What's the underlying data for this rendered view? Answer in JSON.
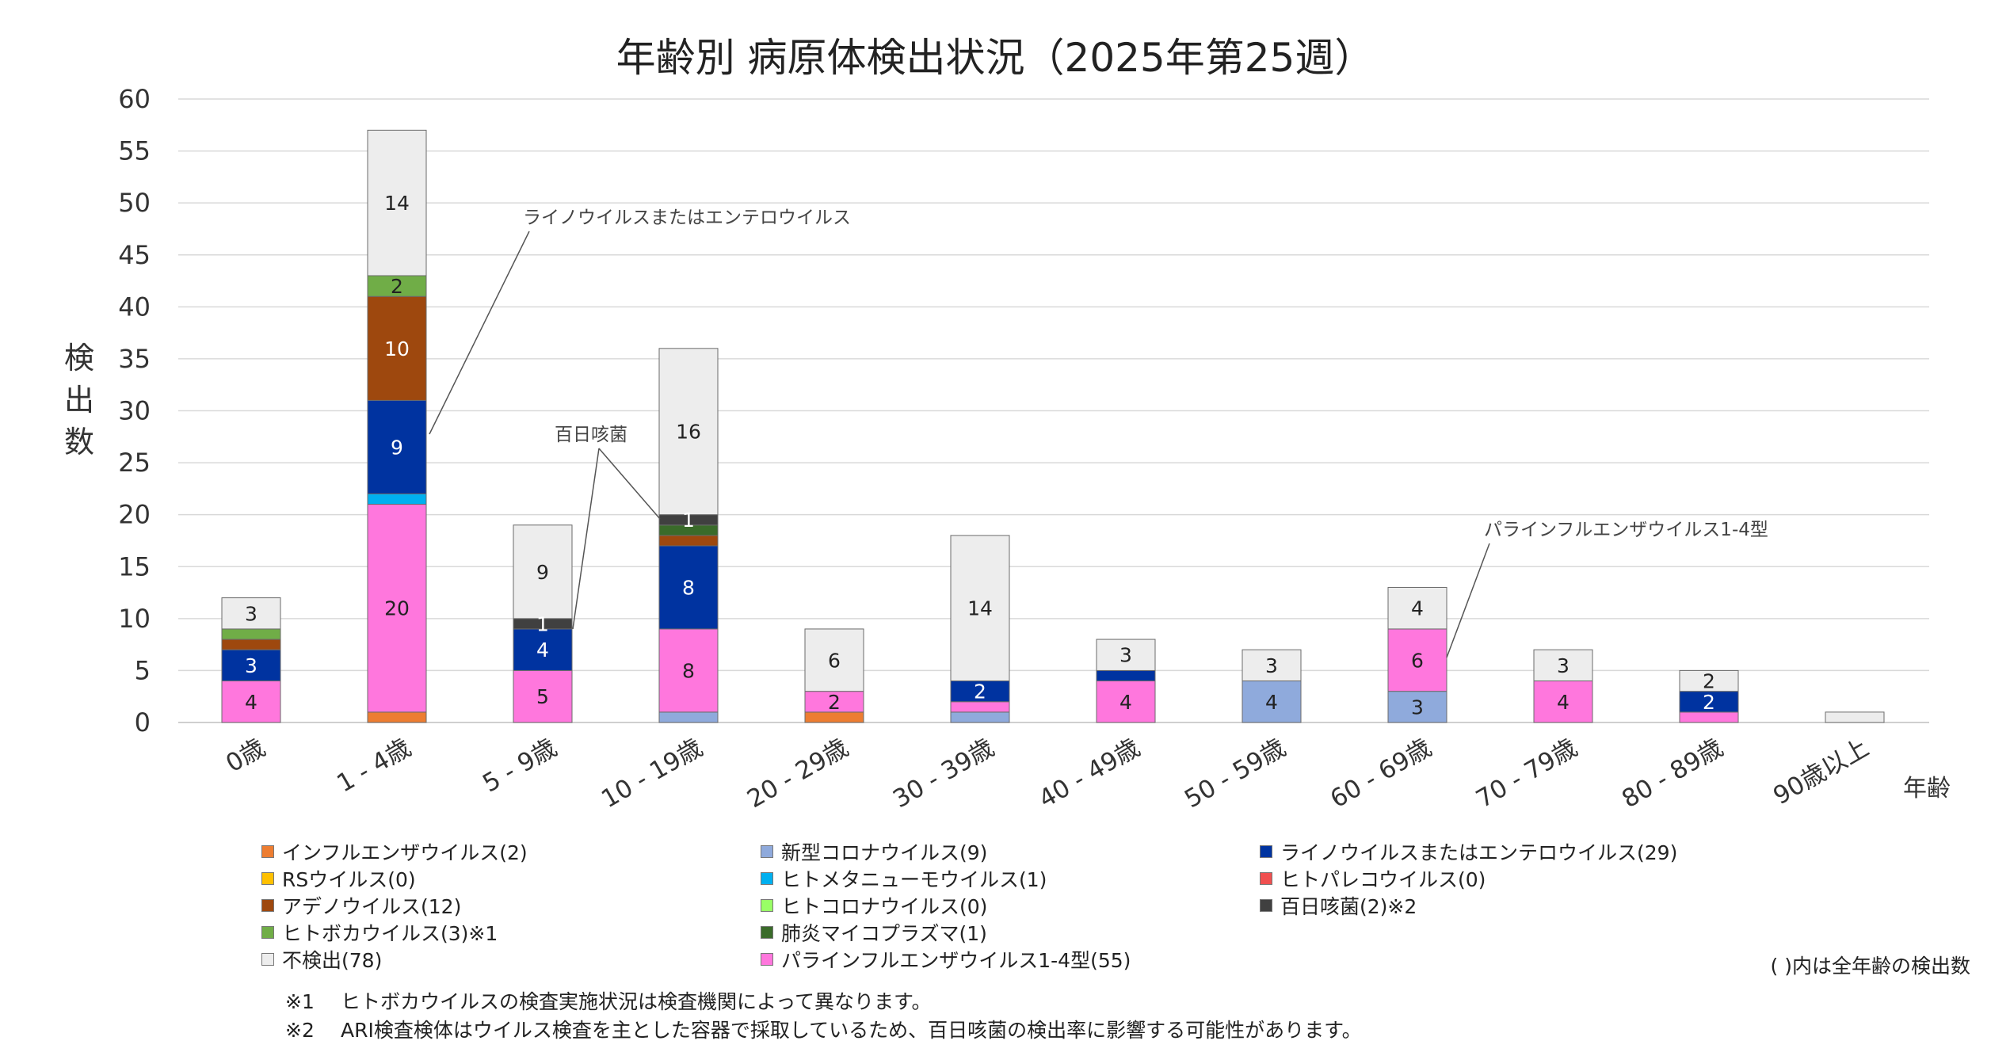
{
  "chart_data": {
    "type": "bar",
    "stacked": true,
    "title": "年齢別 病原体検出状況（2025年第25週）",
    "ylabel": "検出数",
    "xlabel": "年齢",
    "ylim": [
      0,
      60
    ],
    "yticks": [
      0,
      5,
      10,
      15,
      20,
      25,
      30,
      35,
      40,
      45,
      50,
      55,
      60
    ],
    "grid": true,
    "legend_position": "bottom",
    "categories": [
      "0歳",
      "1 - 4歳",
      "5 - 9歳",
      "10 - 19歳",
      "20 - 29歳",
      "30 - 39歳",
      "40 - 49歳",
      "50 - 59歳",
      "60 - 69歳",
      "70 - 79歳",
      "80 - 89歳",
      "90歳以上"
    ],
    "series": [
      {
        "name": "インフルエンザウイルス(2)",
        "color": "#ED7D31",
        "values": [
          0,
          1,
          0,
          0,
          1,
          0,
          0,
          0,
          0,
          0,
          0,
          0
        ]
      },
      {
        "name": "新型コロナウイルス(9)",
        "color": "#8FAADC",
        "values": [
          0,
          0,
          0,
          1,
          0,
          1,
          0,
          4,
          3,
          0,
          0,
          0
        ]
      },
      {
        "name": "パラインフルエンザウイルス1-4型(55)",
        "color": "#FF77DD",
        "values": [
          4,
          20,
          5,
          8,
          2,
          1,
          4,
          0,
          6,
          4,
          1,
          0
        ]
      },
      {
        "name": "RSウイルス(0)",
        "color": "#FFC000",
        "values": [
          0,
          0,
          0,
          0,
          0,
          0,
          0,
          0,
          0,
          0,
          0,
          0
        ]
      },
      {
        "name": "ヒトメタニューモウイルス(1)",
        "color": "#00B0F0",
        "values": [
          0,
          1,
          0,
          0,
          0,
          0,
          0,
          0,
          0,
          0,
          0,
          0
        ]
      },
      {
        "name": "ライノウイルスまたはエンテロウイルス(29)",
        "color": "#0033A0",
        "values": [
          3,
          9,
          4,
          8,
          0,
          2,
          1,
          0,
          0,
          0,
          2,
          0
        ]
      },
      {
        "name": "アデノウイルス(12)",
        "color": "#9E480E",
        "values": [
          1,
          10,
          0,
          1,
          0,
          0,
          0,
          0,
          0,
          0,
          0,
          0
        ]
      },
      {
        "name": "ヒトコロナウイルス(0)",
        "color": "#99FF66",
        "values": [
          0,
          0,
          0,
          0,
          0,
          0,
          0,
          0,
          0,
          0,
          0,
          0
        ]
      },
      {
        "name": "ヒトパレコウイルス(0)",
        "color": "#F05050",
        "values": [
          0,
          0,
          0,
          0,
          0,
          0,
          0,
          0,
          0,
          0,
          0,
          0
        ]
      },
      {
        "name": "ヒトボカウイルス(3)※1",
        "color": "#70AD47",
        "values": [
          1,
          2,
          0,
          0,
          0,
          0,
          0,
          0,
          0,
          0,
          0,
          0
        ]
      },
      {
        "name": "肺炎マイコプラズマ(1)",
        "color": "#3A6B2A",
        "values": [
          0,
          0,
          0,
          1,
          0,
          0,
          0,
          0,
          0,
          0,
          0,
          0
        ]
      },
      {
        "name": "百日咳菌(2)※2",
        "color": "#404040",
        "values": [
          0,
          0,
          1,
          1,
          0,
          0,
          0,
          0,
          0,
          0,
          0,
          0
        ]
      },
      {
        "name": "不検出(78)",
        "color": "#EDEDED",
        "values": [
          3,
          14,
          9,
          16,
          6,
          14,
          3,
          3,
          4,
          3,
          2,
          1
        ]
      }
    ],
    "data_labels": [
      {
        "category": 0,
        "series": 2,
        "text": "4"
      },
      {
        "category": 0,
        "series": 5,
        "text": "3"
      },
      {
        "category": 0,
        "series": 12,
        "text": "3"
      },
      {
        "category": 1,
        "series": 2,
        "text": "20"
      },
      {
        "category": 1,
        "series": 5,
        "text": "9"
      },
      {
        "category": 1,
        "series": 6,
        "text": "10"
      },
      {
        "category": 1,
        "series": 9,
        "text": "2"
      },
      {
        "category": 1,
        "series": 12,
        "text": "14"
      },
      {
        "category": 2,
        "series": 2,
        "text": "5"
      },
      {
        "category": 2,
        "series": 5,
        "text": "4"
      },
      {
        "category": 2,
        "series": 11,
        "text": "1"
      },
      {
        "category": 2,
        "series": 12,
        "text": "9"
      },
      {
        "category": 3,
        "series": 2,
        "text": "8"
      },
      {
        "category": 3,
        "series": 5,
        "text": "8"
      },
      {
        "category": 3,
        "series": 11,
        "text": "1"
      },
      {
        "category": 3,
        "series": 12,
        "text": "16"
      },
      {
        "category": 4,
        "series": 2,
        "text": "2"
      },
      {
        "category": 4,
        "series": 12,
        "text": "6"
      },
      {
        "category": 5,
        "series": 5,
        "text": "2"
      },
      {
        "category": 5,
        "series": 12,
        "text": "14"
      },
      {
        "category": 6,
        "series": 2,
        "text": "4"
      },
      {
        "category": 6,
        "series": 12,
        "text": "3"
      },
      {
        "category": 7,
        "series": 1,
        "text": "4"
      },
      {
        "category": 7,
        "series": 12,
        "text": "3"
      },
      {
        "category": 8,
        "series": 1,
        "text": "3"
      },
      {
        "category": 8,
        "series": 2,
        "text": "6"
      },
      {
        "category": 8,
        "series": 12,
        "text": "4"
      },
      {
        "category": 9,
        "series": 2,
        "text": "4"
      },
      {
        "category": 9,
        "series": 12,
        "text": "3"
      },
      {
        "category": 10,
        "series": 5,
        "text": "2"
      },
      {
        "category": 10,
        "series": 12,
        "text": "2"
      }
    ],
    "annotations": [
      {
        "text": "ライノウイルスまたはエンテロウイルス",
        "category": 1,
        "series": 5
      },
      {
        "text": "百日咳菌",
        "category": 2,
        "series": 11,
        "also_category": 3
      },
      {
        "text": "パラインフルエンザウイルス1-4型",
        "category": 8,
        "series": 2
      }
    ]
  },
  "legend_note": "( )内は全年齢の検出数",
  "footnotes": [
    {
      "mark": "※1",
      "text": "ヒトボカウイルスの検査実施状況は検査機関によって異なります。"
    },
    {
      "mark": "※2",
      "text": "ARI検査検体はウイルス検査を主とした容器で採取しているため、百日咳菌の検出率に影響する可能性があります。"
    }
  ]
}
